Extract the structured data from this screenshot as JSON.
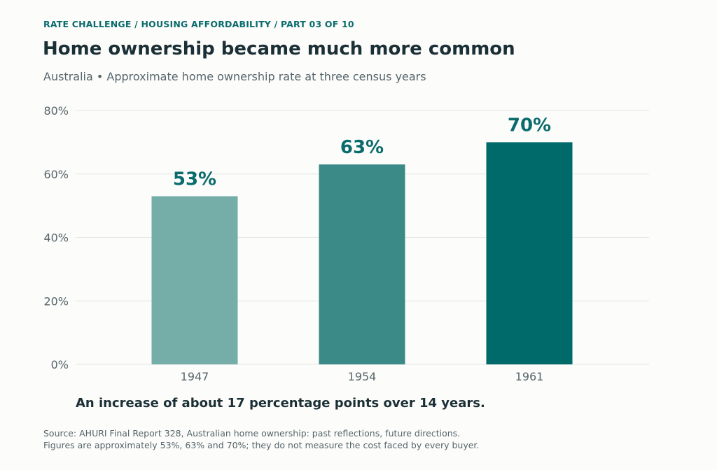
{
  "header": {
    "kicker": "RATE CHALLENGE  /  HOUSING AFFORDABILITY  /  PART 03 OF 10",
    "title": "Home ownership became much more common",
    "subtitle": "Australia • Approximate home ownership rate at three census years"
  },
  "chart_data": {
    "type": "bar",
    "title": "Home ownership became much more common",
    "subtitle": "Australia • Approximate home ownership rate at three census years",
    "categories": [
      "1947",
      "1954",
      "1961"
    ],
    "values": [
      53,
      63,
      70
    ],
    "data_labels": [
      "53%",
      "63%",
      "70%"
    ],
    "bar_colors": [
      "#75aea9",
      "#3b8a87",
      "#006a6b"
    ],
    "label_color": "#0a6b6d",
    "xlabel": "",
    "ylabel": "",
    "ylim": [
      0,
      80
    ],
    "yticks": [
      0,
      20,
      40,
      60,
      80
    ],
    "ytick_labels": [
      "0%",
      "20%",
      "40%",
      "60%",
      "80%"
    ],
    "grid": true,
    "legend": "none"
  },
  "footer": {
    "takeaway": "An increase of about 17 percentage points over 14 years.",
    "source_line1": "Source: AHURI Final Report 328, Australian home ownership: past reflections, future directions.",
    "source_line2": "Figures are approximately 53%, 63% and 70%; they do not measure the cost faced by every buyer."
  }
}
